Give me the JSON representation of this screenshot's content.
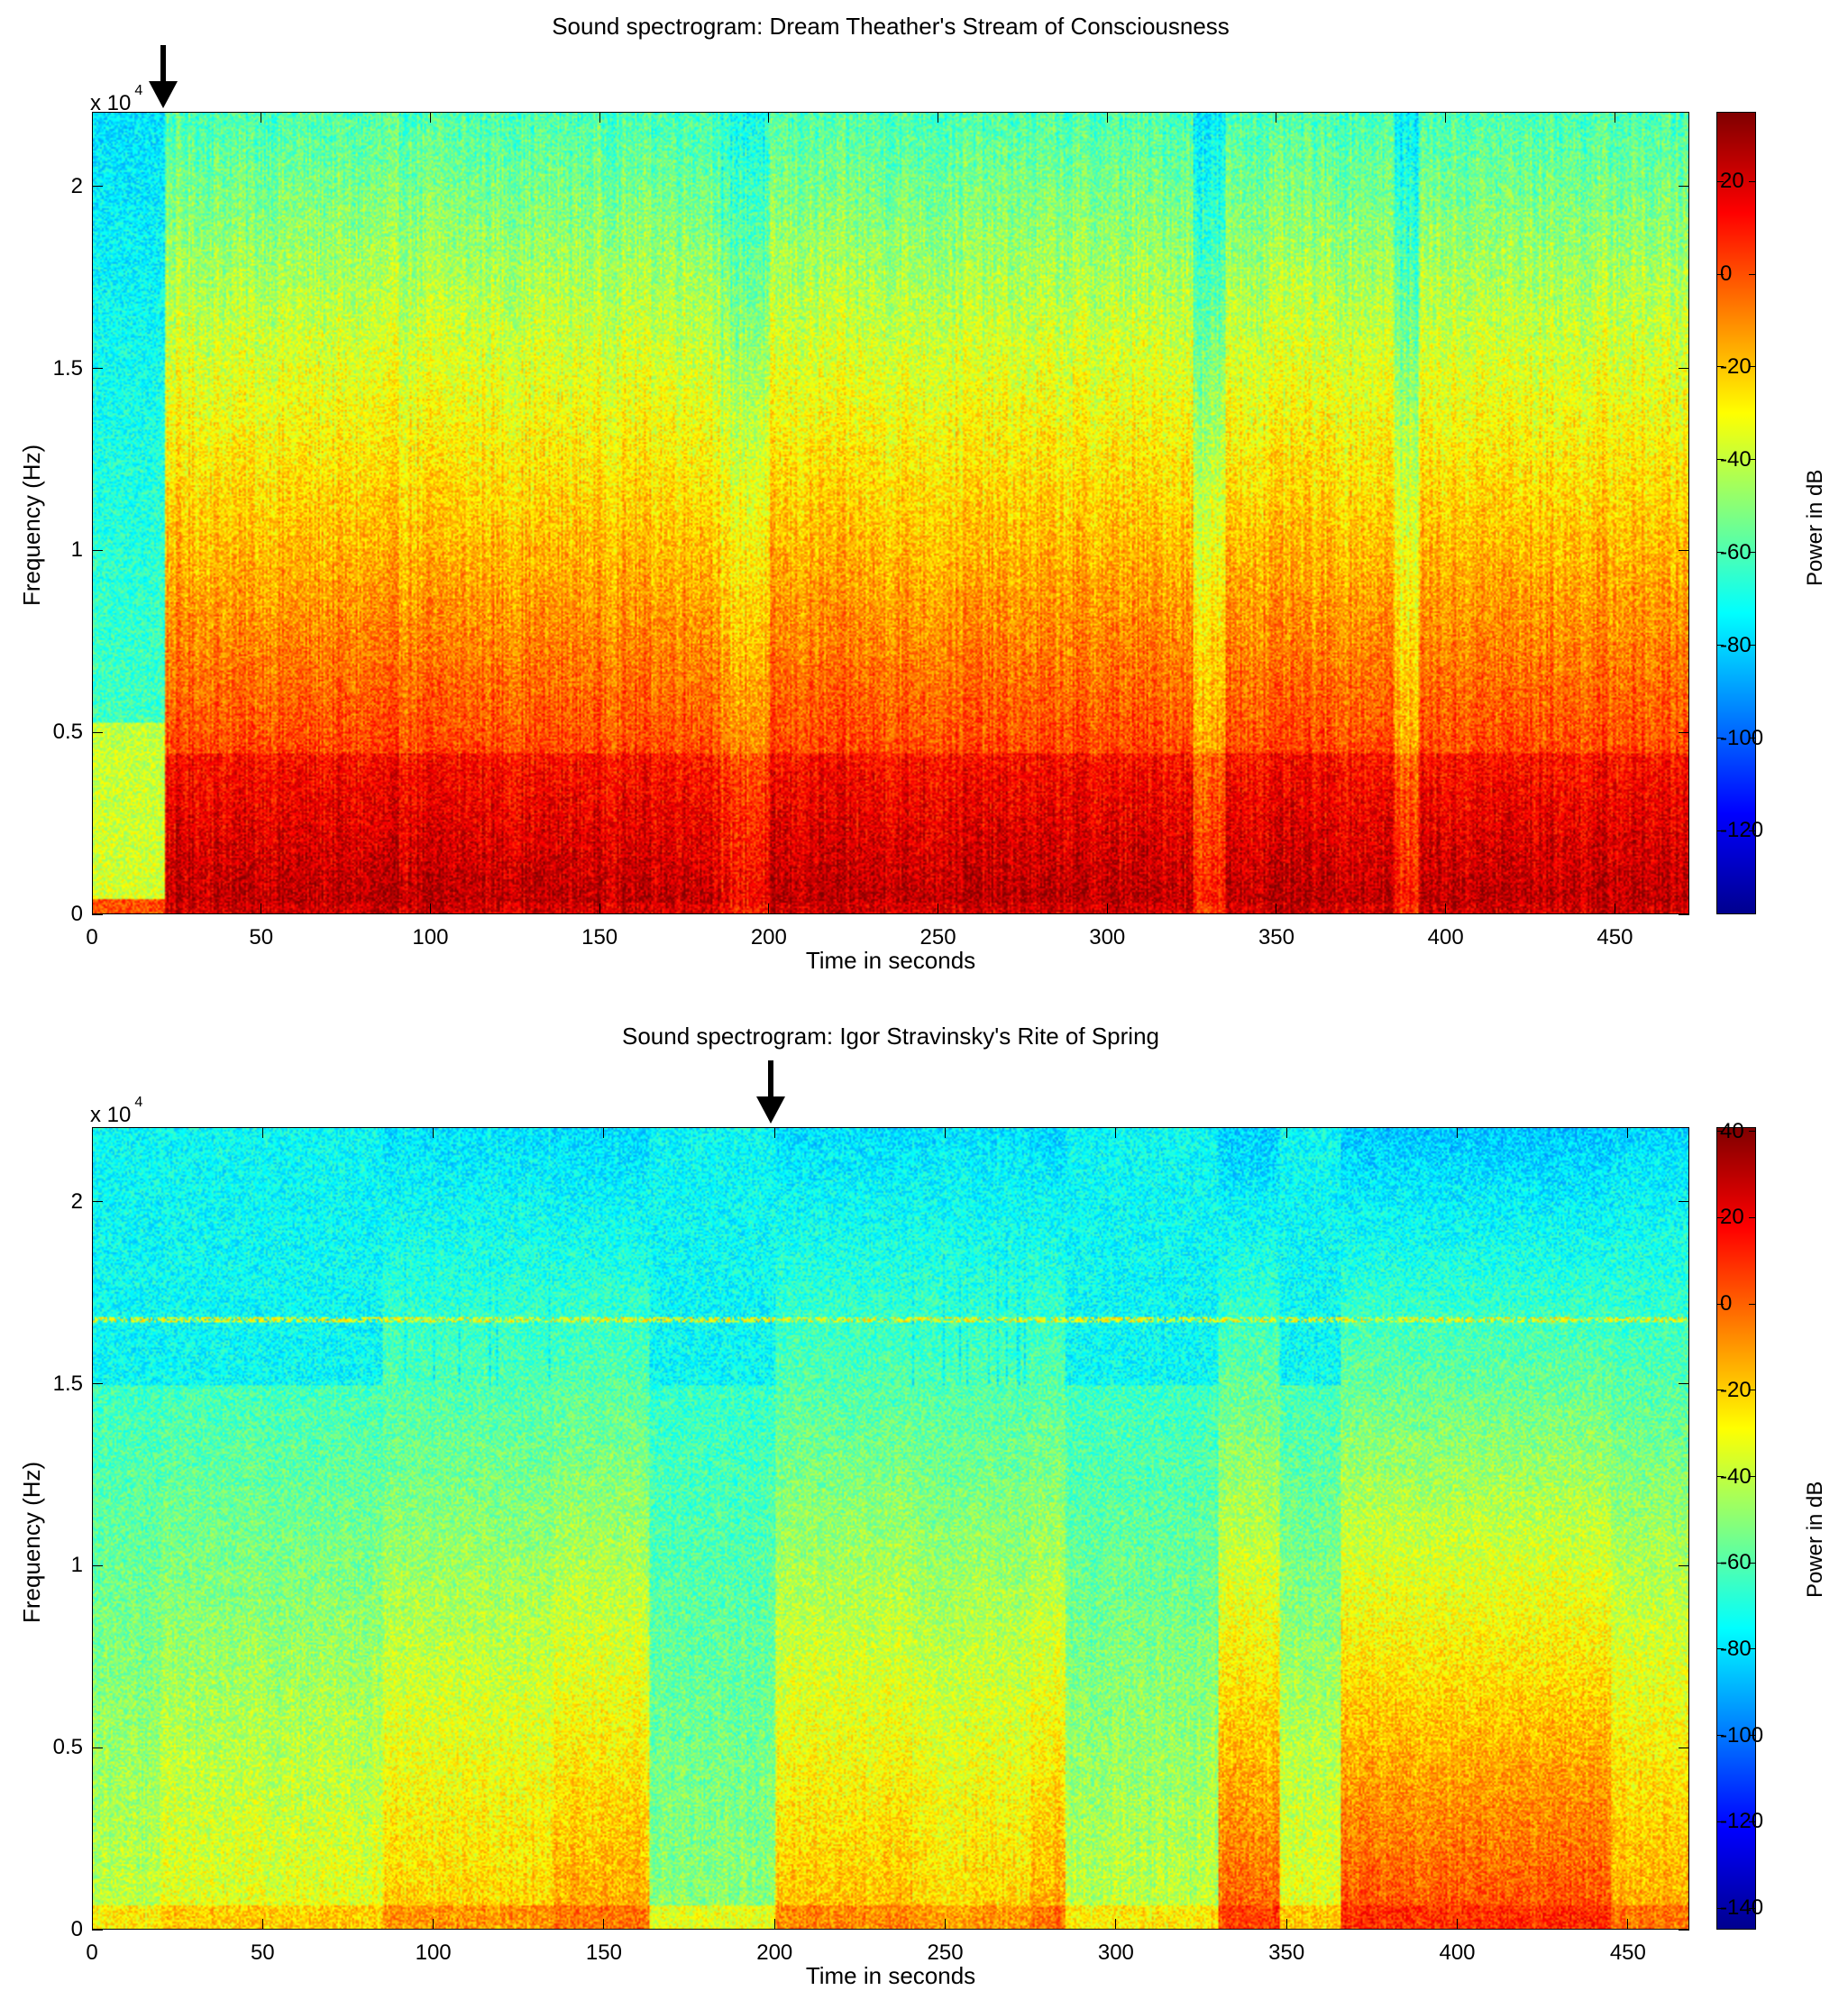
{
  "chart_data": [
    {
      "type": "heatmap",
      "title": "Sound spectrogram: Dream Theather's Stream of Consciousness",
      "xlabel": "Time in seconds",
      "ylabel": "Frequency (Hz)",
      "xlim": [
        0,
        472
      ],
      "ylim": [
        0,
        22050
      ],
      "xticks": [
        0,
        50,
        100,
        150,
        200,
        250,
        300,
        350,
        400,
        450
      ],
      "yticks": [
        0,
        5000,
        10000,
        15000,
        20000
      ],
      "ytick_labels": [
        "0",
        "0.5",
        "1",
        "1.5",
        "2"
      ],
      "y_exponent": {
        "base": "x 10",
        "power": "4"
      },
      "colorbar": {
        "label": "Power in dB",
        "range": [
          -138,
          35
        ],
        "ticks": [
          20,
          0,
          -20,
          -40,
          -60,
          -80,
          -100,
          -120
        ],
        "colormap": "jet"
      },
      "annotation": {
        "type": "arrow",
        "text": "",
        "x": 21
      },
      "regions": [
        {
          "from": 0,
          "to": 21,
          "description_dB_at_low_freq": -30,
          "description_dB_at_high_freq": -70
        },
        {
          "from": 21,
          "to": 472,
          "description_dB_at_low_freq": 5,
          "description_dB_at_high_freq": -45
        }
      ],
      "colors": {
        "low": "#00008f",
        "mid": "#80ff80",
        "high": "#800000"
      }
    },
    {
      "type": "heatmap",
      "title": "Sound spectrogram: Igor Stravinsky's Rite of Spring",
      "xlabel": "Time in seconds",
      "ylabel": "Frequency (Hz)",
      "xlim": [
        0,
        468
      ],
      "ylim": [
        0,
        22050
      ],
      "xticks": [
        0,
        50,
        100,
        150,
        200,
        250,
        300,
        350,
        400,
        450
      ],
      "yticks": [
        0,
        5000,
        10000,
        15000,
        20000
      ],
      "ytick_labels": [
        "0",
        "0.5",
        "1",
        "1.5",
        "2"
      ],
      "y_exponent": {
        "base": "x 10",
        "power": "4"
      },
      "colorbar": {
        "label": "Power in dB",
        "range": [
          -145,
          41
        ],
        "ticks": [
          40,
          20,
          0,
          -20,
          -40,
          -60,
          -80,
          -100,
          -120,
          -140
        ],
        "colormap": "jet"
      },
      "annotation": {
        "type": "arrow",
        "text": "",
        "x": 199
      },
      "tone_line_hz": 16800,
      "colors": {
        "low": "#00008f",
        "mid": "#80ff80",
        "high": "#800000"
      }
    }
  ]
}
